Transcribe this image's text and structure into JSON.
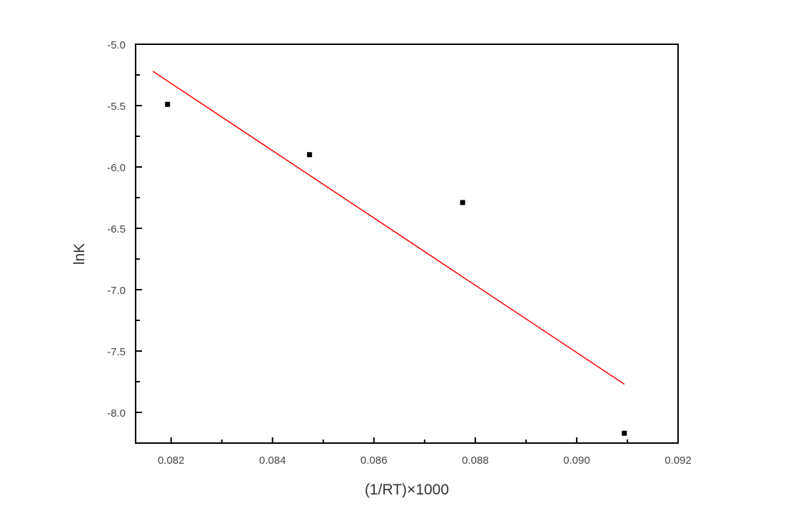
{
  "chart_data": {
    "type": "scatter",
    "title": "",
    "xlabel": "(1/RT)×1000",
    "ylabel": "lnK",
    "xlim": [
      0.0813,
      0.092
    ],
    "ylim": [
      -8.25,
      -5.0
    ],
    "x_ticks": [
      "0.082",
      "0.084",
      "0.086",
      "0.088",
      "0.090",
      "0.092"
    ],
    "y_ticks": [
      "-5.0",
      "-5.5",
      "-6.0",
      "-6.5",
      "-7.0",
      "-7.5",
      "-8.0"
    ],
    "x_tick_values": [
      0.082,
      0.084,
      0.086,
      0.088,
      0.09,
      0.092
    ],
    "y_tick_values": [
      -5.0,
      -5.5,
      -6.0,
      -6.5,
      -7.0,
      -7.5,
      -8.0
    ],
    "grid": false,
    "series": [
      {
        "type": "scatter",
        "color": "#000000",
        "x": [
          0.08193,
          0.08473,
          0.08775,
          0.09094
        ],
        "y": [
          -5.49,
          -5.9,
          -6.29,
          -8.17
        ]
      },
      {
        "type": "line",
        "color": "#ff0000",
        "x": [
          0.08164,
          0.09094
        ],
        "y": [
          -5.22,
          -7.77
        ]
      }
    ]
  }
}
